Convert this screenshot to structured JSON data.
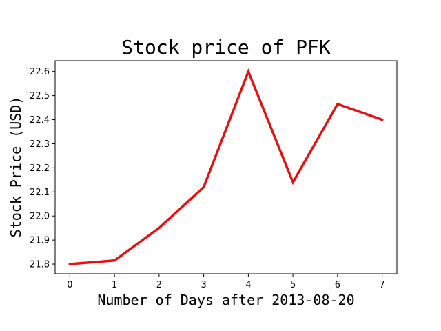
{
  "chart_data": {
    "type": "line",
    "title": "Stock price of PFK",
    "xlabel": "Number of Days after 2013-08-20",
    "ylabel": "Stock Price (USD)",
    "x": [
      0,
      1,
      2,
      3,
      4,
      5,
      6,
      7
    ],
    "series": [
      {
        "values": [
          21.8,
          21.815,
          21.95,
          22.12,
          22.6,
          22.14,
          22.465,
          22.4
        ],
        "color": "#e8100d"
      }
    ],
    "xlim": [
      -0.33,
      7.33
    ],
    "ylim": [
      21.76,
      22.645
    ],
    "xticks": [
      "0",
      "1",
      "2",
      "3",
      "4",
      "5",
      "6",
      "7"
    ],
    "yticks": [
      "21.8",
      "21.9",
      "22.0",
      "22.1",
      "22.2",
      "22.3",
      "22.4",
      "22.5",
      "22.6"
    ],
    "grid": false
  }
}
